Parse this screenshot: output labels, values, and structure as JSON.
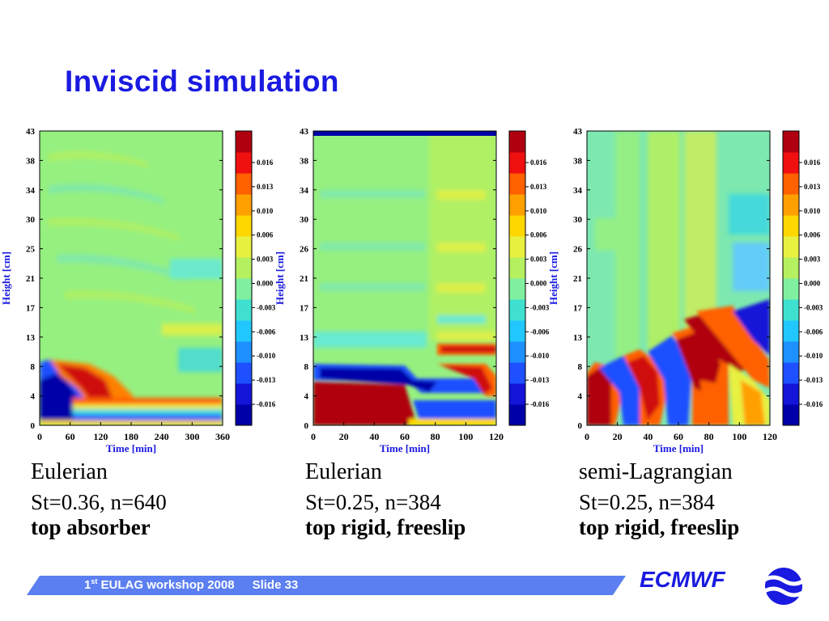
{
  "slide_title": "Inviscid simulation",
  "footer": {
    "workshop_prefix": "1",
    "workshop_sup": "st",
    "workshop_rest": " EULAG workshop 2008",
    "slide": "Slide 33",
    "logo": "ECMWF"
  },
  "colors": {
    "title": "#1a1ae0",
    "footer_band": "#5b7ff0",
    "colorbar": [
      "#0000a8",
      "#1414d8",
      "#1e50ff",
      "#1e90ff",
      "#20c8ff",
      "#40e0d0",
      "#80f0a0",
      "#b4f060",
      "#e8f040",
      "#ffd700",
      "#ffa000",
      "#ff6000",
      "#f01010",
      "#b00010"
    ]
  },
  "chart_data": [
    {
      "type": "heatmap",
      "title": "",
      "xlabel": "Time [min]",
      "ylabel": "Height [cm]",
      "x_ticks": [
        "0",
        "60",
        "120",
        "180",
        "240",
        "300",
        "360"
      ],
      "y_ticks": [
        "43",
        "38",
        "34",
        "30",
        "25",
        "21",
        "17",
        "13",
        "8",
        "4",
        "0"
      ],
      "xlim": [
        0,
        360
      ],
      "ylim": [
        0,
        43
      ],
      "colorbar_ticks": [
        "0.016",
        "0.013",
        "0.010",
        "0.006",
        "0.003",
        "0.000",
        "-0.003",
        "-0.006",
        "-0.010",
        "-0.013",
        "-0.016"
      ],
      "caption": [
        "Eulerian",
        "St=0.36, n=640",
        "top absorber"
      ]
    },
    {
      "type": "heatmap",
      "title": "",
      "xlabel": "Time [min]",
      "ylabel": "Height [cm]",
      "x_ticks": [
        "0",
        "20",
        "40",
        "60",
        "80",
        "100",
        "120"
      ],
      "y_ticks": [
        "43",
        "38",
        "34",
        "30",
        "26",
        "21",
        "17",
        "13",
        "8",
        "4",
        "0"
      ],
      "xlim": [
        0,
        120
      ],
      "ylim": [
        0,
        43
      ],
      "colorbar_ticks": [
        "0.016",
        "0.013",
        "0.010",
        "0.006",
        "0.003",
        "0.000",
        "-0.003",
        "-0.006",
        "-0.010",
        "-0.013",
        "-0.016"
      ],
      "caption": [
        "Eulerian",
        "St=0.25, n=384",
        "top rigid, freeslip"
      ]
    },
    {
      "type": "heatmap",
      "title": "",
      "xlabel": "Time [min]",
      "ylabel": "Height [cm]",
      "x_ticks": [
        "0",
        "20",
        "40",
        "60",
        "80",
        "100",
        "120"
      ],
      "y_ticks": [
        "43",
        "38",
        "34",
        "30",
        "26",
        "21",
        "17",
        "13",
        "8",
        "4",
        "0"
      ],
      "xlim": [
        0,
        120
      ],
      "ylim": [
        0,
        43
      ],
      "colorbar_ticks": [
        "0.016",
        "0.013",
        "0.010",
        "0.006",
        "0.003",
        "0.000",
        "-0.003",
        "-0.006",
        "-0.010",
        "-0.013",
        "-0.016"
      ],
      "caption": [
        "semi-Lagrangian",
        "St=0.25, n=384",
        "top rigid, freeslip"
      ]
    }
  ]
}
